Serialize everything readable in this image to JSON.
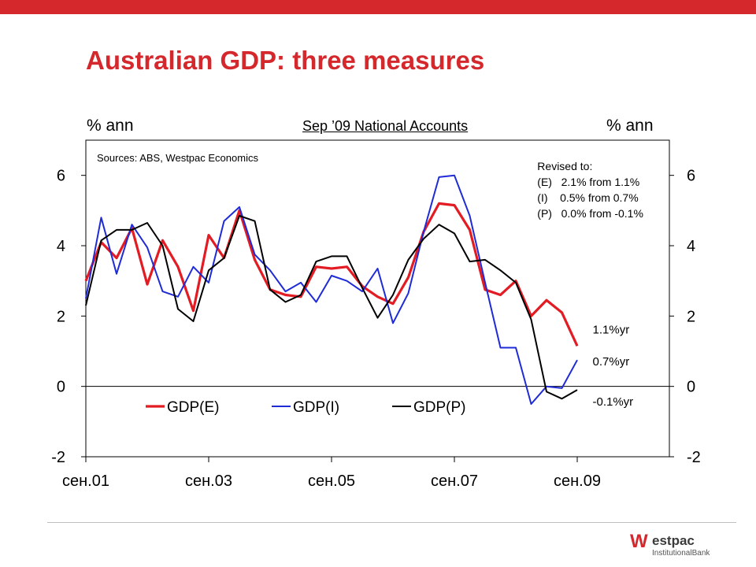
{
  "slide": {
    "title": "Australian GDP: three measures",
    "unit_left": "% ann",
    "unit_right": "% ann",
    "subtitle": "Sep ’09 National Accounts"
  },
  "logo": {
    "mark": "W",
    "name": "estpac",
    "sub": "InstitutionalBank"
  },
  "colors": {
    "brand_red": "#d5282d",
    "series_e": "#e31b23",
    "series_i": "#1f2bd6",
    "series_p": "#000000"
  },
  "chart_data": {
    "type": "line",
    "source_note": "Sources: ABS, Westpac Economics",
    "ylim": [
      -2,
      7
    ],
    "y_ticks": [
      -2,
      0,
      2,
      4,
      6
    ],
    "x_range": [
      2001.75,
      2011.25
    ],
    "x_ticks": [
      {
        "value": 2001.75,
        "label": "сен.01"
      },
      {
        "value": 2003.75,
        "label": "сен.03"
      },
      {
        "value": 2005.75,
        "label": "сен.05"
      },
      {
        "value": 2007.75,
        "label": "сен.07"
      },
      {
        "value": 2009.75,
        "label": "сен.09"
      }
    ],
    "legend": {
      "position": "bottom-left-inside"
    },
    "x": [
      2001.75,
      2002.0,
      2002.25,
      2002.5,
      2002.75,
      2003.0,
      2003.25,
      2003.5,
      2003.75,
      2004.0,
      2004.25,
      2004.5,
      2004.75,
      2005.0,
      2005.25,
      2005.5,
      2005.75,
      2006.0,
      2006.25,
      2006.5,
      2006.75,
      2007.0,
      2007.25,
      2007.5,
      2007.75,
      2008.0,
      2008.25,
      2008.5,
      2008.75,
      2009.0,
      2009.25,
      2009.5,
      2009.75
    ],
    "series": [
      {
        "name": "GDP(E)",
        "color": "#e31b23",
        "values": [
          3.0,
          4.1,
          3.65,
          4.5,
          2.9,
          4.15,
          3.4,
          2.15,
          4.3,
          3.65,
          5.0,
          3.6,
          2.75,
          2.6,
          2.55,
          3.4,
          3.35,
          3.4,
          2.85,
          2.55,
          2.35,
          3.1,
          4.4,
          5.2,
          5.15,
          4.45,
          2.75,
          2.6,
          3.0,
          2.0,
          2.45,
          2.1,
          1.15
        ]
      },
      {
        "name": "GDP(I)",
        "color": "#1f2bd6",
        "values": [
          2.5,
          4.8,
          3.2,
          4.6,
          3.95,
          2.7,
          2.55,
          3.4,
          2.95,
          4.7,
          5.1,
          3.75,
          3.3,
          2.7,
          2.95,
          2.4,
          3.15,
          3.0,
          2.7,
          3.35,
          1.8,
          2.65,
          4.4,
          5.95,
          6.0,
          4.85,
          2.95,
          1.1,
          1.1,
          -0.5,
          0.0,
          -0.05,
          0.75
        ]
      },
      {
        "name": "GDP(P)",
        "color": "#000000",
        "values": [
          2.3,
          4.15,
          4.45,
          4.45,
          4.65,
          4.0,
          2.2,
          1.85,
          3.3,
          3.65,
          4.85,
          4.7,
          2.75,
          2.4,
          2.6,
          3.55,
          3.7,
          3.7,
          2.8,
          1.95,
          2.6,
          3.6,
          4.2,
          4.6,
          4.35,
          3.55,
          3.6,
          3.3,
          2.95,
          1.9,
          -0.15,
          -0.35,
          -0.1
        ]
      }
    ],
    "annotations": [
      {
        "text": "1.1%yr",
        "x": 2010.0,
        "y": 1.5
      },
      {
        "text": "0.7%yr",
        "x": 2010.0,
        "y": 0.6
      },
      {
        "text": "-0.1%yr",
        "x": 2010.0,
        "y": -0.55
      }
    ],
    "revision_box": {
      "title": "Revised to:",
      "lines": [
        "(E)   2.1% from 1.1%",
        "(I)    0.5% from 0.7%",
        "(P)   0.0% from -0.1%"
      ],
      "x": 2009.1,
      "y": 6.15
    }
  }
}
